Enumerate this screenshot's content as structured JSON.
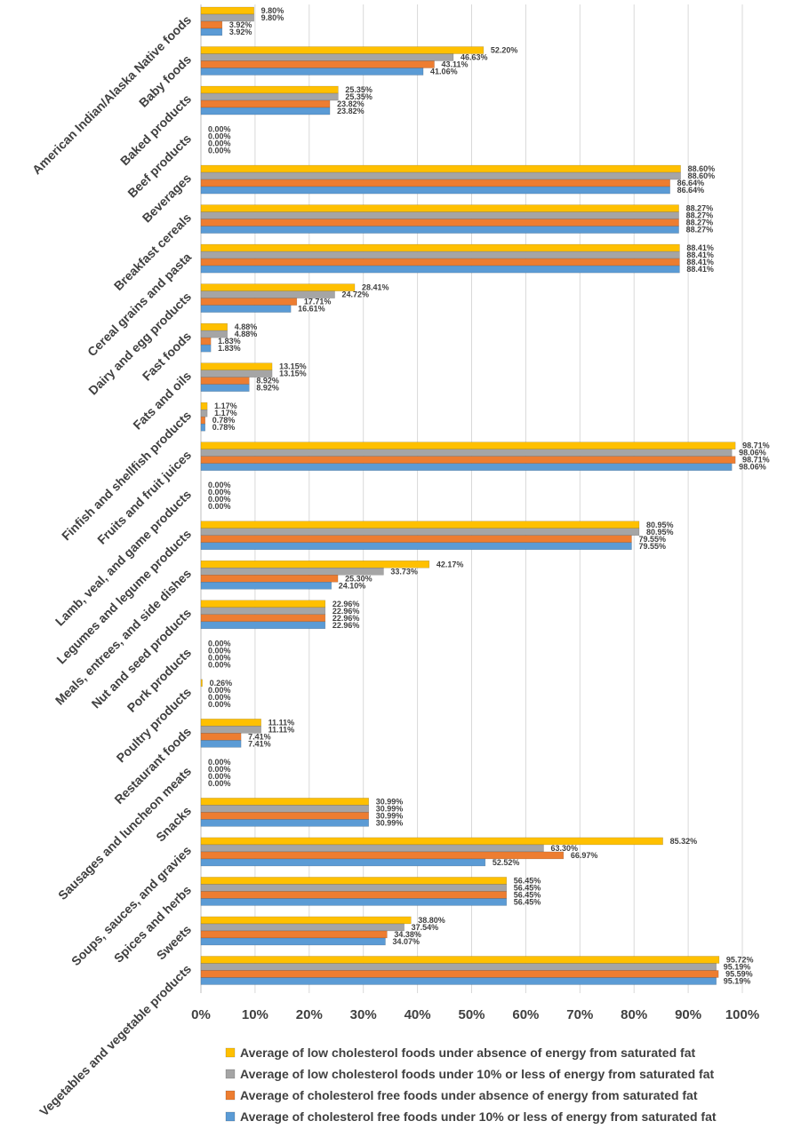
{
  "chart_data": {
    "type": "bar",
    "orientation": "horizontal",
    "title": "",
    "xlabel": "",
    "ylabel": "",
    "xlim": [
      0,
      100
    ],
    "x_unit": "%",
    "x_ticks": [
      "0%",
      "10%",
      "20%",
      "30%",
      "40%",
      "50%",
      "60%",
      "70%",
      "80%",
      "90%",
      "100%"
    ],
    "grid": "vertical",
    "legend_position": "bottom",
    "categories": [
      "American Indian/Alaska Native foods",
      "Baby foods",
      "Baked products",
      "Beef products",
      "Beverages",
      "Breakfast cereals",
      "Cereal grains and pasta",
      "Dairy and egg products",
      "Fast foods",
      "Fats and oils",
      "Finfish and shellfish products",
      "Fruits and fruit juices",
      "Lamb, veal, and game products",
      "Legumes and legume products",
      "Meals, entrees, and side dishes",
      "Nut and seed products",
      "Pork products",
      "Poultry products",
      "Restaurant foods",
      "Sausages and luncheon meats",
      "Snacks",
      "Soups, sauces, and gravies",
      "Spices and herbs",
      "Sweets",
      "Vegetables and vegetable products"
    ],
    "series": [
      {
        "name": "Average of low cholesterol foods under absence of energy from saturated fat",
        "color": "#FFC000",
        "values": [
          9.8,
          52.2,
          25.35,
          0.0,
          88.6,
          88.27,
          88.41,
          28.41,
          4.88,
          13.15,
          1.17,
          98.71,
          0.0,
          80.95,
          42.17,
          22.96,
          0.0,
          0.26,
          11.11,
          0.0,
          30.99,
          85.32,
          56.45,
          38.8,
          95.72
        ],
        "labels": [
          "9.80%",
          "52.20%",
          "25.35%",
          "0.00%",
          "88.60%",
          "88.27%",
          "88.41%",
          "28.41%",
          "4.88%",
          "13.15%",
          "1.17%",
          "98.71%",
          "0.00%",
          "80.95%",
          "42.17%",
          "22.96%",
          "0.00%",
          "0.26%",
          "11.11%",
          "0.00%",
          "30.99%",
          "85.32%",
          "56.45%",
          "38.80%",
          "95.72%"
        ]
      },
      {
        "name": "Average of low cholesterol foods under 10% or less of energy from saturated fat",
        "color": "#A5A5A5",
        "values": [
          9.8,
          46.63,
          25.35,
          0.0,
          88.6,
          88.27,
          88.41,
          24.72,
          4.88,
          13.15,
          1.17,
          98.06,
          0.0,
          80.95,
          33.73,
          22.96,
          0.0,
          0.0,
          11.11,
          0.0,
          30.99,
          63.3,
          56.45,
          37.54,
          95.19
        ],
        "labels": [
          "9.80%",
          "46.63%",
          "25.35%",
          "0.00%",
          "88.60%",
          "88.27%",
          "88.41%",
          "24.72%",
          "4.88%",
          "13.15%",
          "1.17%",
          "98.06%",
          "0.00%",
          "80.95%",
          "33.73%",
          "22.96%",
          "0.00%",
          "0.00%",
          "11.11%",
          "0.00%",
          "30.99%",
          "63.30%",
          "56.45%",
          "37.54%",
          "95.19%"
        ]
      },
      {
        "name": "Average of cholesterol free foods under absence of energy from saturated fat",
        "color": "#ED7D31",
        "values": [
          3.92,
          43.11,
          23.82,
          0.0,
          86.64,
          88.27,
          88.41,
          17.71,
          1.83,
          8.92,
          0.78,
          98.71,
          0.0,
          79.55,
          25.3,
          22.96,
          0.0,
          0.0,
          7.41,
          0.0,
          30.99,
          66.97,
          56.45,
          34.38,
          95.59
        ],
        "labels": [
          "3.92%",
          "43.11%",
          "23.82%",
          "0.00%",
          "86.64%",
          "88.27%",
          "88.41%",
          "17.71%",
          "1.83%",
          "8.92%",
          "0.78%",
          "98.71%",
          "0.00%",
          "79.55%",
          "25.30%",
          "22.96%",
          "0.00%",
          "0.00%",
          "7.41%",
          "0.00%",
          "30.99%",
          "66.97%",
          "56.45%",
          "34.38%",
          "95.59%"
        ]
      },
      {
        "name": "Average of cholesterol free foods under 10% or less of energy from saturated fat",
        "color": "#5B9BD5",
        "values": [
          3.92,
          41.06,
          23.82,
          0.0,
          86.64,
          88.27,
          88.41,
          16.61,
          1.83,
          8.92,
          0.78,
          98.06,
          0.0,
          79.55,
          24.1,
          22.96,
          0.0,
          0.0,
          7.41,
          0.0,
          30.99,
          52.52,
          56.45,
          34.07,
          95.19
        ],
        "labels": [
          "3.92%",
          "41.06%",
          "23.82%",
          "0.00%",
          "86.64%",
          "88.27%",
          "88.41%",
          "16.61%",
          "1.83%",
          "8.92%",
          "0.78%",
          "98.06%",
          "0.00%",
          "79.55%",
          "24.10%",
          "22.96%",
          "0.00%",
          "0.00%",
          "7.41%",
          "0.00%",
          "30.99%",
          "52.52%",
          "56.45%",
          "34.07%",
          "95.19%"
        ]
      }
    ]
  }
}
